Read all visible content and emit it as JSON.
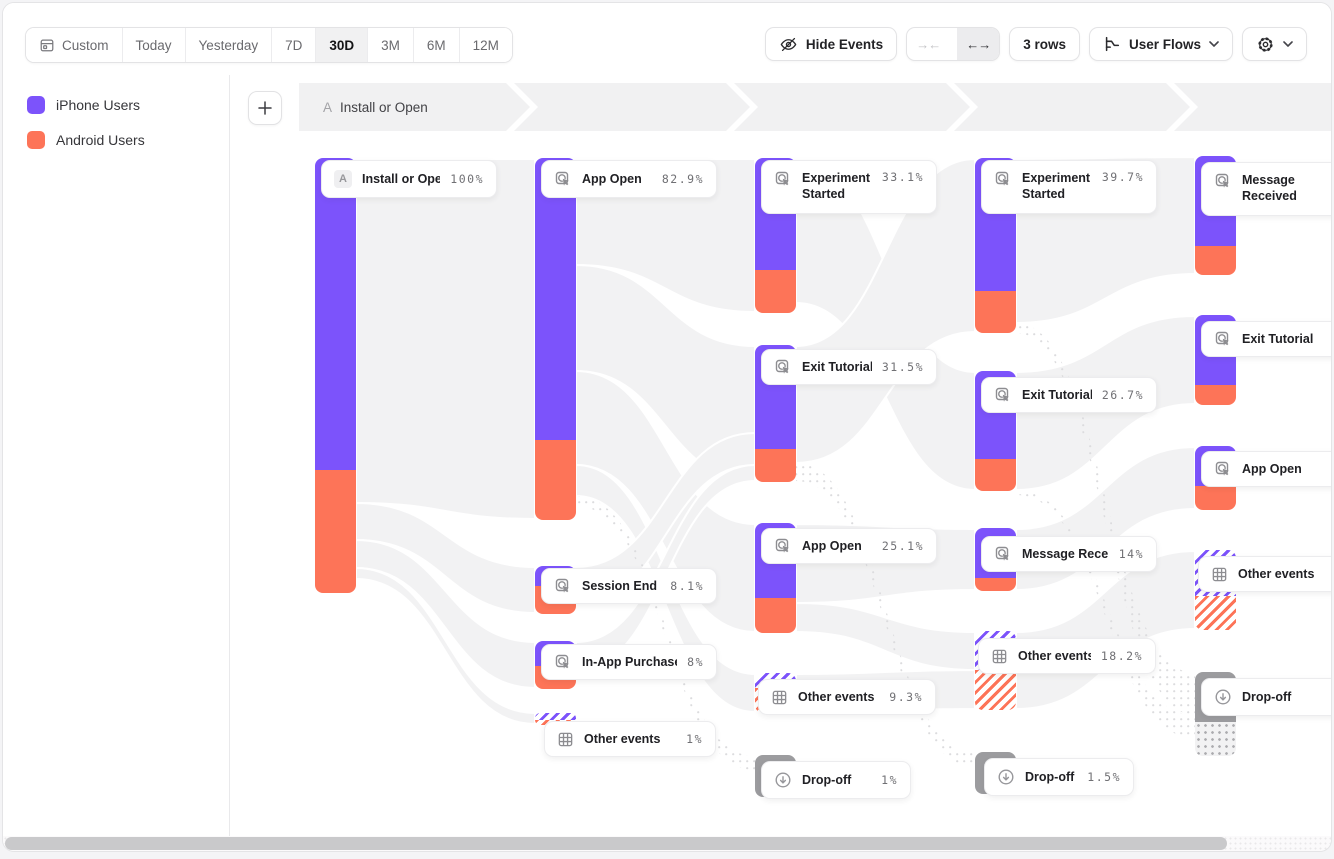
{
  "toolbar": {
    "date_ranges": [
      "Custom",
      "Today",
      "Yesterday",
      "7D",
      "30D",
      "3M",
      "6M",
      "12M"
    ],
    "active_range": "30D",
    "hide_events_label": "Hide Events",
    "rows_label": "3 rows",
    "view_label": "User Flows"
  },
  "legend": {
    "items": [
      {
        "label": "iPhone Users",
        "color": "#7C53FB"
      },
      {
        "label": "Android Users",
        "color": "#FD7458"
      }
    ]
  },
  "flow_header": {
    "step_letter": "A",
    "step_label": "Install or Open"
  },
  "colors": {
    "purple": "#7C53FB",
    "orange": "#FD7458",
    "dropoff_gray": "#9c9c9f",
    "ribbon": "#f2f2f3",
    "band": "#f1f1f2"
  },
  "chart_data": {
    "type": "sankey",
    "legend_entries": [
      "iPhone Users",
      "Android Users"
    ],
    "first_step": "A Install or Open",
    "columns": [
      {
        "nodes": [
          {
            "label": "Install or Open",
            "pct": "100%",
            "kind": "event",
            "badge": "A"
          }
        ]
      },
      {
        "nodes": [
          {
            "label": "App Open",
            "pct": "82.9%",
            "kind": "event"
          },
          {
            "label": "Session End",
            "pct": "8.1%",
            "kind": "event"
          },
          {
            "label": "In-App Purchase",
            "pct": "8%",
            "kind": "event"
          },
          {
            "label": "Other events",
            "pct": "1%",
            "kind": "other"
          }
        ]
      },
      {
        "nodes": [
          {
            "label": "Experiment Started",
            "pct": "33.1%",
            "kind": "event",
            "two_line": true
          },
          {
            "label": "Exit Tutorial",
            "pct": "31.5%",
            "kind": "event"
          },
          {
            "label": "App Open",
            "pct": "25.1%",
            "kind": "event"
          },
          {
            "label": "Other events",
            "pct": "9.3%",
            "kind": "other"
          },
          {
            "label": "Drop-off",
            "pct": "1%",
            "kind": "dropoff"
          }
        ]
      },
      {
        "nodes": [
          {
            "label": "Experiment Started",
            "pct": "39.7%",
            "kind": "event",
            "two_line": true
          },
          {
            "label": "Exit Tutorial",
            "pct": "26.7%",
            "kind": "event"
          },
          {
            "label": "Message Received",
            "pct": "14%",
            "kind": "event"
          },
          {
            "label": "Other events",
            "pct": "18.2%",
            "kind": "other"
          },
          {
            "label": "Drop-off",
            "pct": "1.5%",
            "kind": "dropoff"
          }
        ]
      },
      {
        "nodes": [
          {
            "label": "Message Received",
            "pct": "",
            "kind": "event",
            "two_line": true
          },
          {
            "label": "Exit Tutorial",
            "pct": "",
            "kind": "event"
          },
          {
            "label": "App Open",
            "pct": "",
            "kind": "event"
          },
          {
            "label": "Other events",
            "pct": "",
            "kind": "other"
          },
          {
            "label": "Drop-off",
            "pct": "",
            "kind": "dropoff"
          }
        ]
      }
    ]
  }
}
